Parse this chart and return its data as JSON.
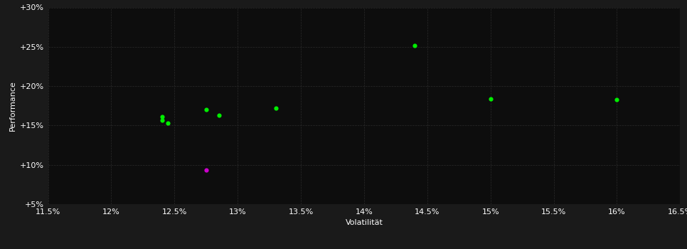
{
  "background_color": "#1a1a1a",
  "plot_bg_color": "#0d0d0d",
  "grid_color": "#2a2a2a",
  "text_color": "#ffffff",
  "xlabel": "Volatilität",
  "ylabel": "Performance",
  "xlim": [
    0.115,
    0.165
  ],
  "ylim": [
    0.05,
    0.3
  ],
  "xticks": [
    0.115,
    0.12,
    0.125,
    0.13,
    0.135,
    0.14,
    0.145,
    0.15,
    0.155,
    0.16,
    0.165
  ],
  "yticks": [
    0.05,
    0.1,
    0.15,
    0.2,
    0.25,
    0.3
  ],
  "green_points": [
    [
      0.124,
      0.161
    ],
    [
      0.124,
      0.157
    ],
    [
      0.1245,
      0.153
    ],
    [
      0.1275,
      0.17
    ],
    [
      0.1285,
      0.163
    ],
    [
      0.133,
      0.172
    ],
    [
      0.144,
      0.252
    ],
    [
      0.15,
      0.184
    ],
    [
      0.16,
      0.183
    ]
  ],
  "magenta_points": [
    [
      0.1275,
      0.093
    ]
  ],
  "green_color": "#00ee00",
  "magenta_color": "#cc00cc",
  "point_size": 20,
  "font_size_axis": 8,
  "font_size_ticks": 8
}
